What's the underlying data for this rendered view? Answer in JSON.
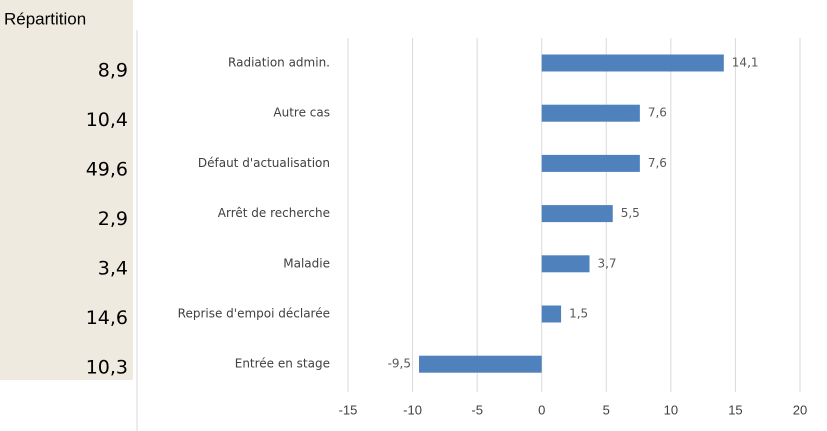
{
  "table": {
    "header": "Répartition",
    "values": [
      "8,9",
      "10,4",
      "49,6",
      "2,9",
      "3,4",
      "14,6",
      "10,3"
    ]
  },
  "chart_data": {
    "type": "bar",
    "orientation": "horizontal",
    "categories": [
      "Radiation admin.",
      "Autre cas",
      "Défaut d'actualisation",
      "Arrêt de recherche",
      "Maladie",
      "Reprise d'empoi déclarée",
      "Entrée en stage"
    ],
    "values": [
      14.1,
      7.6,
      7.6,
      5.5,
      3.7,
      1.5,
      -9.5
    ],
    "value_labels": [
      "14,1",
      "7,6",
      "7,6",
      "5,5",
      "3,7",
      "1,5",
      "-9,5"
    ],
    "color": "#4f81bd",
    "xlim": [
      -15,
      20
    ],
    "xticks": [
      -15,
      -10,
      -5,
      0,
      5,
      10,
      15,
      20
    ],
    "grid": true
  }
}
